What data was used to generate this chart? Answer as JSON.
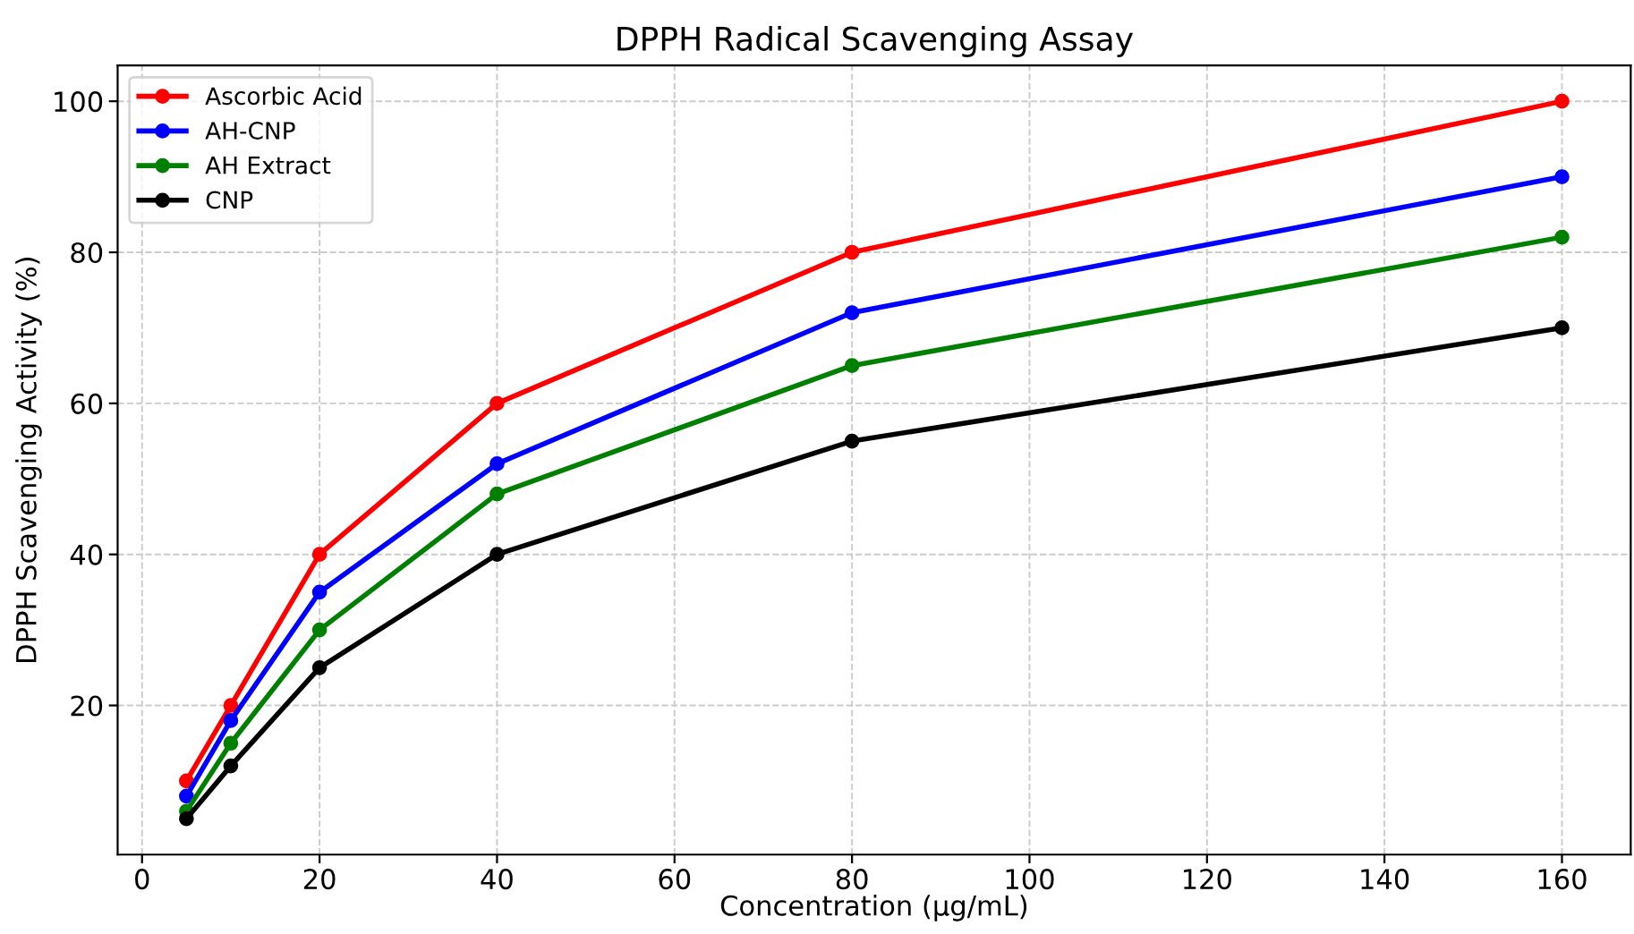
{
  "chart_data": {
    "type": "line",
    "title": "DPPH Radical Scavenging Assay",
    "xlabel": "Concentration (µg/mL)",
    "ylabel": "DPPH Scavenging Activity (%)",
    "x": [
      5,
      10,
      20,
      40,
      80,
      160
    ],
    "series": [
      {
        "name": "Ascorbic Acid",
        "color": "#ff0000",
        "values": [
          10,
          20,
          40,
          60,
          80,
          100
        ]
      },
      {
        "name": "AH-CNP",
        "color": "#0000ff",
        "values": [
          8,
          18,
          35,
          52,
          72,
          90
        ]
      },
      {
        "name": "AH Extract",
        "color": "#008000",
        "values": [
          6,
          15,
          30,
          48,
          65,
          82
        ]
      },
      {
        "name": "CNP",
        "color": "#000000",
        "values": [
          5,
          12,
          25,
          40,
          55,
          70
        ]
      }
    ],
    "xlim": [
      -2.75,
      167.75
    ],
    "ylim": [
      0.25,
      104.75
    ],
    "xticks": [
      0,
      20,
      40,
      60,
      80,
      100,
      120,
      140,
      160
    ],
    "yticks": [
      20,
      40,
      60,
      80,
      100
    ],
    "grid": true,
    "legend": "top left",
    "marker": "circle",
    "line_style": "solid"
  }
}
